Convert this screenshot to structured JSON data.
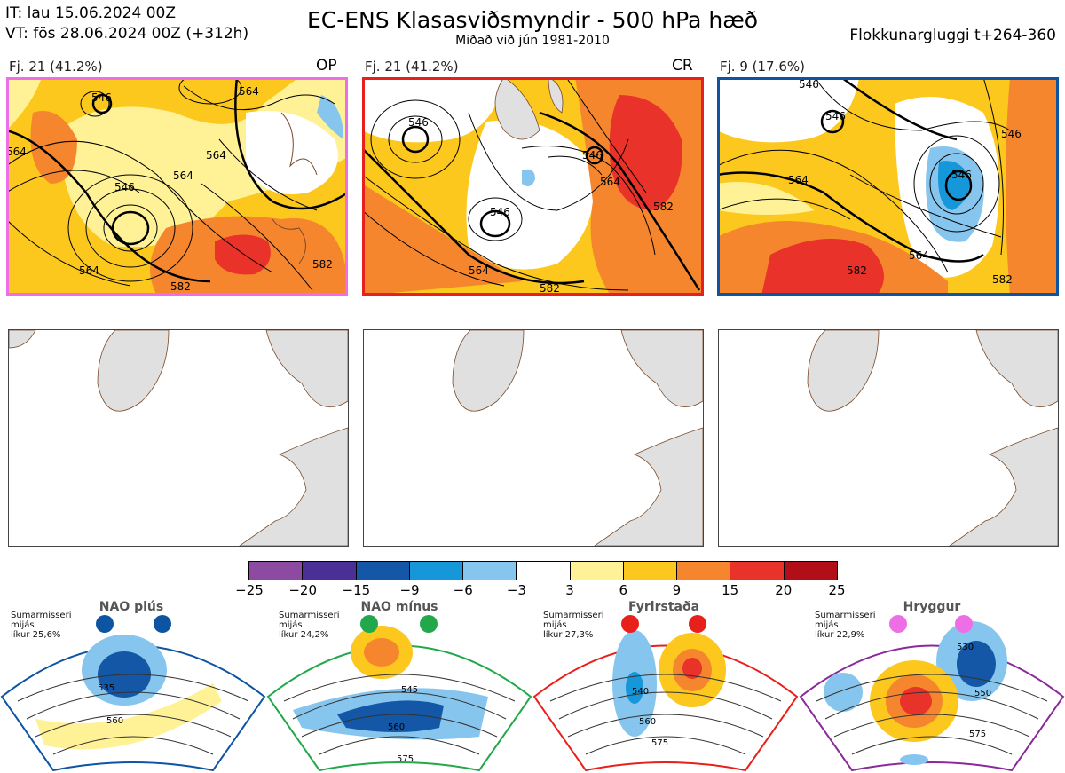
{
  "header": {
    "it_line": "IT: lau 15.06.2024 00Z",
    "vt_line": "VT: fös 28.06.2024 00Z  (+312h)",
    "title": "EC-ENS Klasasviðsmyndir - 500 hPa hæð",
    "subtitle": "Miðað við jún 1981-2010",
    "window": "Flokkunargluggi t+264-360"
  },
  "panels": [
    {
      "label": "Fj. 21 (41.2%)",
      "tag": "OP",
      "border": "#ee6ee6",
      "contour_labels": [
        "546",
        "564",
        "564",
        "564",
        "546",
        "564",
        "582",
        "564",
        "582"
      ]
    },
    {
      "label": "Fj. 21 (41.2%)",
      "tag": "CR",
      "border": "#e8201c",
      "contour_labels": [
        "546",
        "546",
        "564",
        "546",
        "564",
        "582",
        "582"
      ]
    },
    {
      "label": "Fj. 9 (17.6%)",
      "tag": "",
      "border": "#0d54a2",
      "contour_labels": [
        "546",
        "546",
        "564",
        "546",
        "564",
        "582",
        "582",
        "546"
      ]
    }
  ],
  "colorbar": {
    "colors": [
      "#8d4aa1",
      "#4a2f96",
      "#1357a6",
      "#1597d9",
      "#86c6ee",
      "#ffffff",
      "#fff296",
      "#fcc81e",
      "#f5862e",
      "#e8322a",
      "#b10e17"
    ],
    "labels": [
      "−25",
      "−20",
      "−15",
      "−9",
      "−6",
      "−3",
      "3",
      "6",
      "9",
      "15",
      "20",
      "25"
    ]
  },
  "regimes": [
    {
      "name": "NAO plús",
      "note": [
        "Sumarmisseri",
        "mijás",
        "líkur 25,6%"
      ],
      "color": "#0d54a2",
      "contour_labels": [
        "535",
        "560"
      ]
    },
    {
      "name": "NAO mínus",
      "note": [
        "Sumarmisseri",
        "mijás",
        "líkur 24,2%"
      ],
      "color": "#22a84a",
      "contour_labels": [
        "545",
        "560",
        "575"
      ]
    },
    {
      "name": "Fyrirstaða",
      "note": [
        "Sumarmisseri",
        "mijás",
        "líkur 27,3%"
      ],
      "color": "#e8201c",
      "contour_labels": [
        "540",
        "560",
        "575"
      ]
    },
    {
      "name": "Hryggur",
      "note": [
        "Sumarmisseri",
        "mijás",
        "líkur 22,9%"
      ],
      "color": "#ee6ee6",
      "contour_labels": [
        "530",
        "550",
        "575"
      ]
    }
  ]
}
